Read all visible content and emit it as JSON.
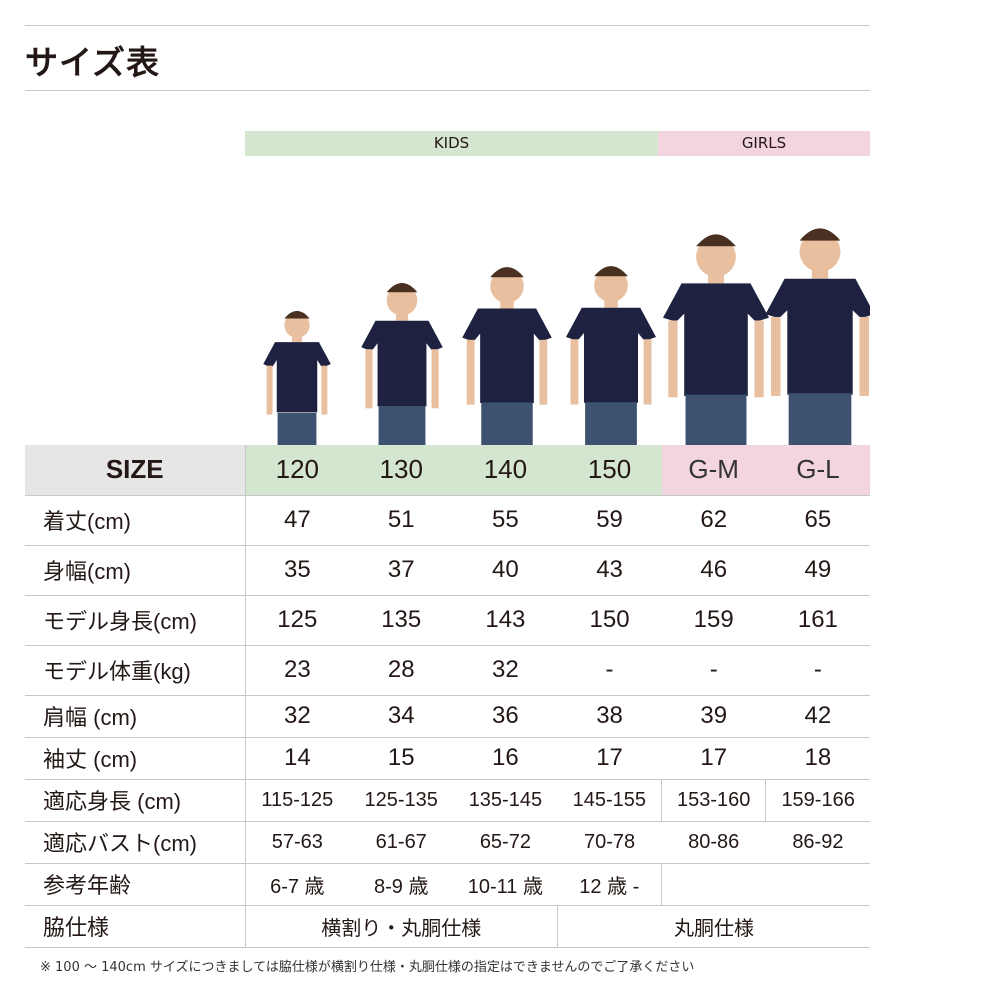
{
  "title": "サイズ表",
  "bands": {
    "kids": "KIDS",
    "girls": "GIRLS"
  },
  "colors": {
    "kids": "#d5e6d0",
    "girls": "#f3d5e0",
    "shirt": "#1e2240",
    "jeans": "#3d5270"
  },
  "table": {
    "header": {
      "label": "SIZE",
      "sizes": [
        "120",
        "130",
        "140",
        "150",
        "G-M",
        "G-L"
      ]
    },
    "rows": [
      {
        "label": "着丈(cm)",
        "values": [
          "47",
          "51",
          "55",
          "59",
          "62",
          "65"
        ]
      },
      {
        "label": "身幅(cm)",
        "values": [
          "35",
          "37",
          "40",
          "43",
          "46",
          "49"
        ]
      },
      {
        "label": "モデル身長(cm)",
        "values": [
          "125",
          "135",
          "143",
          "150",
          "159",
          "161"
        ]
      },
      {
        "label": "モデル体重(kg)",
        "values": [
          "23",
          "28",
          "32",
          "-",
          "-",
          "-"
        ]
      },
      {
        "label": "肩幅 (cm)",
        "values": [
          "32",
          "34",
          "36",
          "38",
          "39",
          "42"
        ]
      },
      {
        "label": "袖丈 (cm)",
        "values": [
          "14",
          "15",
          "16",
          "17",
          "17",
          "18"
        ]
      },
      {
        "label": "適応身長 (cm)",
        "values": [
          "115-125",
          "125-135",
          "135-145",
          "145-155",
          "153-160",
          "159-166"
        ]
      },
      {
        "label": "適応バスト(cm)",
        "values": [
          "57-63",
          "61-67",
          "65-72",
          "70-78",
          "80-86",
          "86-92"
        ]
      },
      {
        "label": "参考年齢",
        "values": [
          "6-7 歳",
          "8-9 歳",
          "10-11 歳",
          "12 歳 -"
        ]
      },
      {
        "label": "脇仕様",
        "values": [
          "横割り・丸胴仕様",
          "丸胴仕様"
        ]
      }
    ]
  },
  "note": "※ 100 ～ 140cm サイズにつきましては脇仕様が横割り仕様・丸胴仕様の指定はできませんのでご了承ください"
}
